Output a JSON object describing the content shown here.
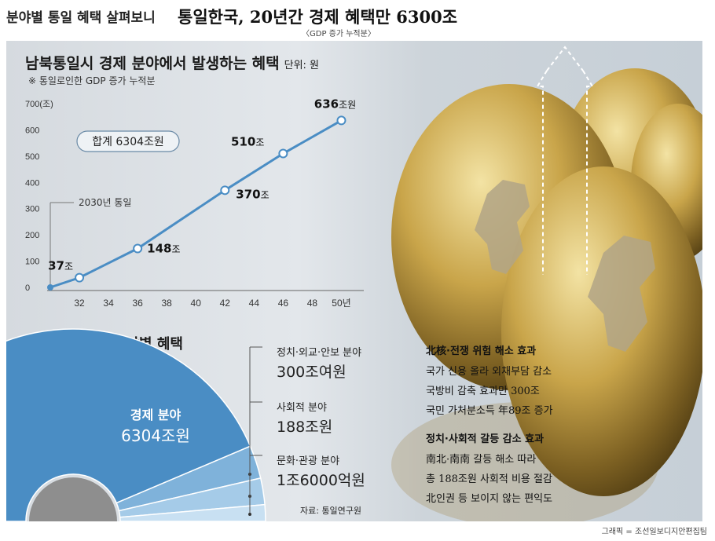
{
  "header": {
    "section": "분야별 통일 혜택 살펴보니",
    "headline": "통일한국, 20년간 경제 혜택만 6300조",
    "subtitle": "〈GDP 증가 누적분〉"
  },
  "chart_title": "남북통일시 경제 분야에서 발생하는 혜택",
  "chart_unit": "단위: 원",
  "chart_note": "※ 통일로인한 GDP 증가 누적분",
  "chart_data": {
    "type": "line",
    "x": [
      2030,
      2032,
      2036,
      2042,
      2046,
      2050
    ],
    "y": [
      0,
      37,
      148,
      370,
      510,
      636
    ],
    "xlim": [
      2030,
      2051
    ],
    "ylim": [
      0,
      700
    ],
    "xticks": [
      32,
      34,
      36,
      38,
      40,
      42,
      44,
      46,
      48,
      50
    ],
    "xtick_labels": [
      "32",
      "34",
      "36",
      "38",
      "40",
      "42",
      "44",
      "46",
      "48",
      "50년"
    ],
    "yticks": [
      0,
      100,
      200,
      300,
      400,
      500,
      600,
      700
    ],
    "ytick_labels": [
      "0",
      "100",
      "200",
      "300",
      "400",
      "500",
      "600",
      "700(조)"
    ],
    "data_labels": [
      {
        "x": 2032,
        "num": "37",
        "unit": "조"
      },
      {
        "x": 2036,
        "num": "148",
        "unit": "조"
      },
      {
        "x": 2042,
        "num": "370",
        "unit": "조"
      },
      {
        "x": 2046,
        "num": "510",
        "unit": "조"
      },
      {
        "x": 2050,
        "num": "636",
        "unit": "조원"
      }
    ],
    "annotation_start": "2030년 통일",
    "total_label": "합계 6304조원",
    "grid": false,
    "color": "#4a8dc4"
  },
  "pie_title": "한반도 통일의 분야별 혜택",
  "pie": {
    "main_label": "경제 분야",
    "main_value": "6304조원",
    "colors": [
      "#4a8dc4",
      "#7fb2da",
      "#a5cbe8",
      "#c8e0f2"
    ],
    "others": [
      {
        "label": "정치·외교·안보 분야",
        "value": "300조여원"
      },
      {
        "label": "사회적 분야",
        "value": "188조원"
      },
      {
        "label": "문화·관광 분야",
        "value": "1조6000억원"
      }
    ]
  },
  "source": "자료: 통일연구원",
  "effects": [
    {
      "heading": "北核·전쟁 위험 해소 효과",
      "lines": [
        "국가 신용 올라 외채부담 감소",
        "국방비 감축 효과만 300조",
        "국민 가처분소득 年89조 증가"
      ]
    },
    {
      "heading": "정치·사회적 갈등 감소 효과",
      "lines": [
        "南北·南南 갈등 해소 따라",
        "총 188조원 사회적 비용 절감",
        "北인권 등 보이지 않는 편익도"
      ]
    }
  ],
  "credit": "그래픽 = 조선일보디지안편집팀"
}
